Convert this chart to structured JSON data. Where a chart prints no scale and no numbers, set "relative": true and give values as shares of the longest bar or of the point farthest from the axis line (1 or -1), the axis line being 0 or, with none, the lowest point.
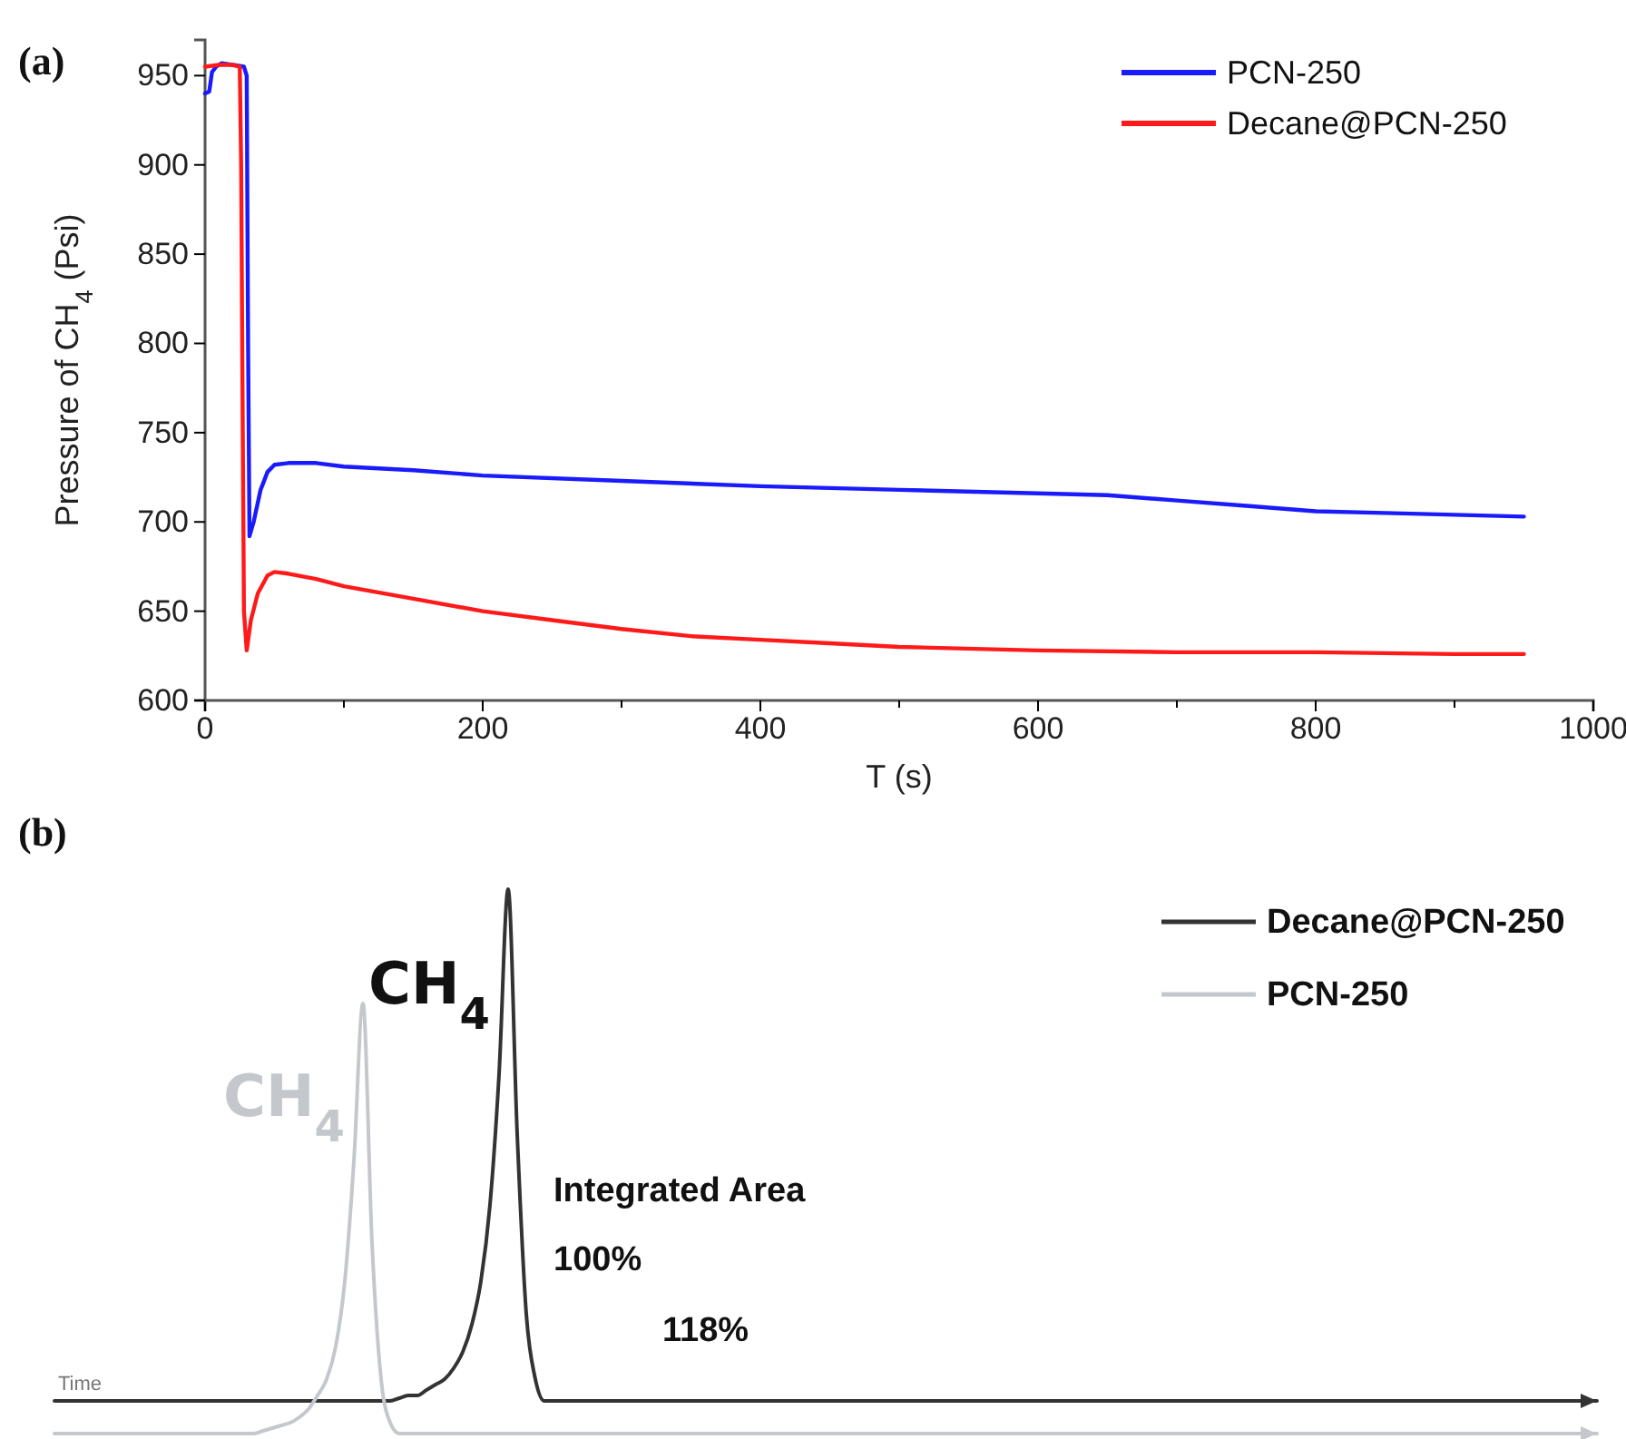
{
  "chart_data": [
    {
      "type": "line",
      "title": "(a)",
      "xlabel": "T (s)",
      "ylabel": "Pressure of CH$_{4}$ (Psi)",
      "xlim": [
        0,
        1000
      ],
      "ylim": [
        600,
        970
      ],
      "xticks": [
        0,
        {
          "value": 100,
          "label": null
        },
        200,
        {
          "value": 300,
          "label": null
        },
        400,
        {
          "value": 500,
          "label": null
        },
        600,
        {
          "value": 700,
          "label": null
        },
        800,
        {
          "value": 900,
          "label": null
        },
        1000
      ],
      "yticks": [
        600,
        650,
        700,
        750,
        800,
        850,
        900,
        950
      ],
      "grid": false,
      "legend": "top right",
      "series": [
        {
          "name": "PCN-250",
          "color": "#1a1aff",
          "x": [
            0,
            3,
            5,
            8,
            12,
            20,
            28,
            30,
            31,
            32,
            35,
            40,
            45,
            50,
            60,
            80,
            100,
            150,
            200,
            300,
            400,
            500,
            600,
            650,
            700,
            750,
            800,
            850,
            900,
            950
          ],
          "values": [
            940,
            941,
            952,
            955,
            957,
            956,
            955,
            950,
            800,
            692,
            700,
            718,
            728,
            732,
            733,
            733,
            731,
            729,
            726,
            723,
            720,
            718,
            716,
            715,
            712,
            709,
            706,
            705,
            704,
            703
          ]
        },
        {
          "name": "Decane@PCN-250",
          "color": "#ff1a1a",
          "x": [
            0,
            10,
            20,
            25,
            26,
            27,
            28,
            30,
            33,
            38,
            45,
            50,
            60,
            80,
            100,
            150,
            200,
            250,
            300,
            350,
            400,
            450,
            500,
            600,
            700,
            800,
            900,
            950
          ],
          "values": [
            955,
            956,
            956,
            955,
            900,
            770,
            650,
            628,
            645,
            660,
            670,
            672,
            671,
            668,
            664,
            657,
            650,
            645,
            640,
            636,
            634,
            632,
            630,
            628,
            627,
            627,
            626,
            626
          ]
        }
      ]
    },
    {
      "type": "line",
      "title": "(b)",
      "xlabel": "Time",
      "relative": true,
      "legend": "top right",
      "annotations": [
        "CH$_{4}$",
        "CH$_{4}$",
        "Integrated Area",
        "100%",
        "118%"
      ],
      "categories": [
        null,
        null,
        null,
        null,
        null,
        null,
        null,
        null,
        null,
        null,
        null,
        null,
        null,
        null,
        null,
        null,
        null,
        null,
        null,
        null,
        null,
        null,
        null,
        null,
        null,
        null,
        null,
        null,
        null,
        null,
        null,
        null,
        null,
        null,
        null,
        null,
        null,
        null,
        null,
        null,
        null,
        null,
        null,
        null,
        null,
        null,
        null,
        null,
        null,
        null,
        null,
        null,
        null,
        null,
        null,
        null,
        null,
        null,
        null,
        null,
        null,
        null,
        null,
        null,
        null,
        null,
        null,
        null,
        null,
        null,
        null,
        null,
        null,
        null,
        null,
        null,
        null,
        null,
        null,
        null,
        null,
        null,
        null,
        null,
        null,
        null,
        null,
        null,
        null,
        null,
        null,
        null,
        null,
        null,
        null,
        null,
        null,
        null,
        null,
        null,
        null,
        null,
        null,
        null,
        null,
        null,
        null,
        null,
        null,
        null,
        null,
        null,
        null,
        null,
        null,
        null,
        null,
        null,
        null,
        null,
        null,
        null,
        null,
        null,
        null,
        null,
        null,
        null,
        null,
        null,
        null,
        null,
        null,
        null,
        null,
        null,
        null,
        null,
        null,
        null,
        null,
        null,
        null,
        null,
        null,
        null,
        null,
        null,
        null,
        null,
        null,
        null,
        null,
        null,
        null,
        null,
        null,
        null,
        null,
        null,
        null,
        null,
        null,
        null,
        null,
        null,
        null,
        null,
        null,
        null,
        null
      ],
      "series": [
        {
          "name": "Decane@PCN-250",
          "color": "#333333",
          "values": [
            0.06,
            0.06,
            0.06,
            0.06,
            0.06,
            0.06,
            0.06,
            0.06,
            0.06,
            0.06,
            0.06,
            0.06,
            0.06,
            0.06,
            0.06,
            0.06,
            0.06,
            0.06,
            0.06,
            0.06,
            0.06,
            0.06,
            0.06,
            0.06,
            0.06,
            0.06,
            0.06,
            0.06,
            0.06,
            0.06,
            0.06,
            0.06,
            0.06,
            0.06,
            0.06,
            0.06,
            0.06,
            0.06,
            0.065,
            0.07,
            0.07,
            0.08,
            0.09,
            0.1,
            0.12,
            0.15,
            0.2,
            0.28,
            0.42,
            0.66,
            1,
            0.55,
            0.22,
            0.1,
            0.06,
            0.06,
            0.06,
            0.06,
            0.06,
            0.06,
            0.06,
            0.06,
            0.06,
            0.06,
            0.06,
            0.06,
            0.06,
            0.06,
            0.06,
            0.06,
            0.06,
            0.06,
            0.06,
            0.06,
            0.06,
            0.06,
            0.06,
            0.06,
            0.06,
            0.06,
            0.06,
            0.06,
            0.06,
            0.06,
            0.06,
            0.06,
            0.06,
            0.06,
            0.06,
            0.06,
            0.06,
            0.06,
            0.06,
            0.06,
            0.06,
            0.06,
            0.06,
            0.06,
            0.06,
            0.06,
            0.06,
            0.06,
            0.06,
            0.06,
            0.06,
            0.06,
            0.06,
            0.06,
            0.06,
            0.06,
            0.06,
            0.06,
            0.06,
            0.06,
            0.06,
            0.06,
            0.06,
            0.06,
            0.06,
            0.06,
            0.06,
            0.06,
            0.06,
            0.06,
            0.06,
            0.06,
            0.06,
            0.06,
            0.06,
            0.06,
            0.06,
            0.06,
            0.06,
            0.06,
            0.06,
            0.06,
            0.06,
            0.06,
            0.06,
            0.06,
            0.06,
            0.06,
            0.06,
            0.06,
            0.06,
            0.06,
            0.06,
            0.06,
            0.06,
            0.06,
            0.06,
            0.06,
            0.06,
            0.06,
            0.06,
            0.06,
            0.06,
            0.06,
            0.06,
            0.06,
            0.06,
            0.06,
            0.06,
            0.06,
            0.06,
            0.06,
            0.06,
            0.06,
            0.06,
            0.06,
            0.06
          ]
        },
        {
          "name": "PCN-250",
          "color": "#c4c8cc",
          "values": [
            0,
            0,
            0,
            0,
            0,
            0,
            0,
            0,
            0,
            0,
            0,
            0,
            0,
            0,
            0,
            0,
            0,
            0,
            0,
            0,
            0,
            0,
            0,
            0.005,
            0.01,
            0.015,
            0.02,
            0.03,
            0.045,
            0.07,
            0.1,
            0.16,
            0.28,
            0.5,
            0.79,
            0.35,
            0.1,
            0.02,
            0,
            0,
            0,
            0,
            0,
            0,
            0,
            0,
            0,
            0,
            0,
            0,
            0,
            0,
            0,
            0,
            0,
            0,
            0,
            0,
            0,
            0,
            0,
            0,
            0,
            0,
            0,
            0,
            0,
            0,
            0,
            0,
            0,
            0,
            0,
            0,
            0,
            0,
            0,
            0,
            0,
            0,
            0,
            0,
            0,
            0,
            0,
            0,
            0,
            0,
            0,
            0,
            0,
            0,
            0,
            0,
            0,
            0,
            0,
            0,
            0,
            0,
            0,
            0,
            0,
            0,
            0,
            0,
            0,
            0,
            0,
            0,
            0,
            0,
            0,
            0,
            0,
            0,
            0,
            0,
            0,
            0,
            0,
            0,
            0,
            0,
            0,
            0,
            0,
            0,
            0,
            0,
            0,
            0,
            0,
            0,
            0,
            0,
            0,
            0,
            0,
            0,
            0,
            0,
            0,
            0,
            0,
            0,
            0,
            0,
            0,
            0,
            0,
            0,
            0,
            0,
            0,
            0,
            0,
            0,
            0,
            0,
            0,
            0,
            0,
            0,
            0,
            0,
            0,
            0,
            0,
            0,
            0
          ]
        }
      ]
    }
  ]
}
